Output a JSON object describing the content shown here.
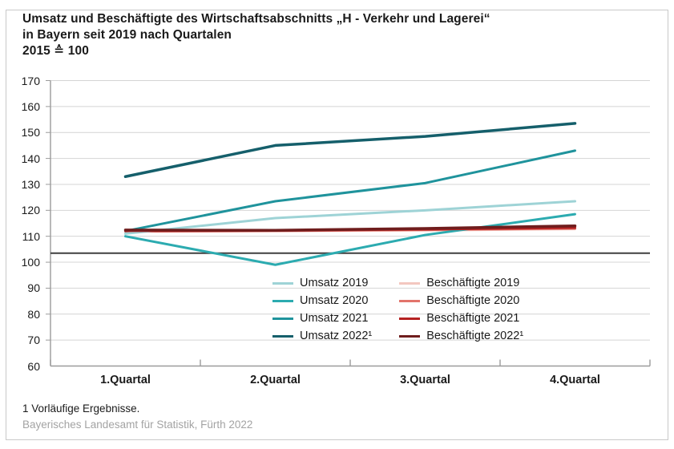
{
  "title": {
    "line1": "Umsatz und Beschäftigte des Wirtschaftsabschnitts „H - Verkehr und Lagerei“",
    "line2": "in Bayern seit 2019 nach Quartalen",
    "line3": "2015 ≙ 100"
  },
  "footnote": "1 Vorläufige Ergebnisse.",
  "source": "Bayerisches Landesamt für Statistik, Fürth 2022",
  "chart_data": {
    "type": "line",
    "title": "Umsatz und Beschäftigte des Wirtschaftsabschnitts „H - Verkehr und Lagerei“ in Bayern seit 2019 nach Quartalen",
    "index_note": "2015 ≙ 100",
    "categories": [
      "1.Quartal",
      "2.Quartal",
      "3.Quartal",
      "4.Quartal"
    ],
    "ylim": [
      60,
      170
    ],
    "ytick_step": 10,
    "grid": true,
    "legend_position": "inside-bottom-center",
    "reference_line": {
      "value": 103.5,
      "color": "#3f3f3f"
    },
    "axis_color": "#9b9b9b",
    "grid_color": "#d4d4d4",
    "series": [
      {
        "name": "Umsatz 2019",
        "color": "#9ed3d6",
        "width": 3,
        "values": [
          111,
          117,
          120,
          123.5
        ]
      },
      {
        "name": "Umsatz 2020",
        "color": "#2cabb0",
        "width": 3,
        "values": [
          110,
          99,
          110.5,
          118.5
        ]
      },
      {
        "name": "Umsatz 2021",
        "color": "#1f939c",
        "width": 3,
        "values": [
          112,
          123.5,
          130.5,
          143
        ]
      },
      {
        "name": "Umsatz 2022¹",
        "color": "#155f6b",
        "width": 3.5,
        "values": [
          133,
          145,
          148.5,
          153.5
        ]
      },
      {
        "name": "Beschäftigte 2019",
        "color": "#f3c7c0",
        "width": 3,
        "values": [
          111.8,
          112,
          112.3,
          112.8
        ]
      },
      {
        "name": "Beschäftigte 2020",
        "color": "#e2746b",
        "width": 3,
        "values": [
          111.9,
          112.1,
          112.5,
          113
        ]
      },
      {
        "name": "Beschäftigte 2021",
        "color": "#b52121",
        "width": 3,
        "values": [
          112.1,
          112.2,
          112.7,
          113.3
        ]
      },
      {
        "name": "Beschäftigte 2022¹",
        "color": "#6f1d1d",
        "width": 3.5,
        "values": [
          112.4,
          112.3,
          113,
          114
        ]
      }
    ],
    "draw_order": [
      4,
      5,
      0,
      1,
      2,
      3,
      6,
      7
    ]
  }
}
